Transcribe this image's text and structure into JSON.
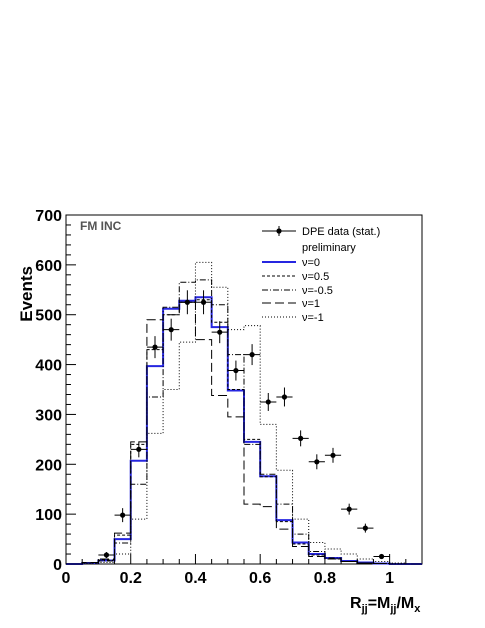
{
  "chart_data": {
    "type": "line",
    "tag": "FM INC",
    "ylabel": "Events",
    "xlabel": {
      "main": "R",
      "sub1": "jj",
      "eq": "=M",
      "sub2": "jj",
      "slash": "/M",
      "sub3": "x"
    },
    "xlim": [
      0,
      1.1
    ],
    "ylim": [
      0,
      700
    ],
    "x_ticks": [
      0,
      0.2,
      0.4,
      0.6,
      0.8,
      1
    ],
    "x_tick_labels": [
      "0",
      "0.2",
      "0.4",
      "0.6",
      "0.8",
      "1"
    ],
    "y_ticks": [
      0,
      100,
      200,
      300,
      400,
      500,
      600,
      700
    ],
    "y_tick_labels": [
      "0",
      "100",
      "200",
      "300",
      "400",
      "500",
      "600",
      "700"
    ],
    "bin_edges": [
      0,
      0.05,
      0.1,
      0.15,
      0.2,
      0.25,
      0.3,
      0.35,
      0.4,
      0.45,
      0.5,
      0.55,
      0.6,
      0.65,
      0.7,
      0.75,
      0.8,
      0.85,
      0.9,
      0.95,
      1.0,
      1.05,
      1.1
    ],
    "data_points": {
      "name": "DPE data (stat.)",
      "x": [
        0.125,
        0.175,
        0.225,
        0.275,
        0.325,
        0.375,
        0.425,
        0.475,
        0.525,
        0.575,
        0.625,
        0.675,
        0.725,
        0.775,
        0.825,
        0.875,
        0.925,
        0.975
      ],
      "y": [
        18,
        98,
        230,
        435,
        470,
        525,
        525,
        465,
        388,
        420,
        325,
        335,
        252,
        205,
        218,
        110,
        72,
        15
      ],
      "yerr": [
        6,
        14,
        16,
        22,
        22,
        24,
        24,
        22,
        20,
        21,
        18,
        19,
        16,
        15,
        15,
        11,
        9,
        4
      ],
      "xerr": 0.025
    },
    "series": [
      {
        "name": "ν=0",
        "color": "#2626e0",
        "style": "solid",
        "values": [
          0,
          2,
          7,
          50,
          207,
          397,
          512,
          528,
          535,
          475,
          348,
          245,
          176,
          88,
          43,
          20,
          12,
          6,
          3,
          1,
          0,
          0
        ]
      },
      {
        "name": "ν=0.5",
        "color": "#000000",
        "style": "dash-fine",
        "values": [
          0,
          2,
          8,
          58,
          240,
          430,
          500,
          525,
          530,
          485,
          350,
          250,
          175,
          85,
          40,
          18,
          10,
          5,
          2,
          1,
          0,
          0
        ]
      },
      {
        "name": "ν=-0.5",
        "color": "#000000",
        "style": "dashdot",
        "values": [
          0,
          2,
          6,
          42,
          160,
          335,
          515,
          565,
          570,
          520,
          420,
          240,
          180,
          120,
          60,
          25,
          12,
          5,
          2,
          1,
          0,
          0
        ]
      },
      {
        "name": "ν=1",
        "color": "#000000",
        "style": "dash-long",
        "values": [
          0,
          3,
          10,
          62,
          245,
          490,
          500,
          525,
          450,
          338,
          295,
          120,
          115,
          70,
          35,
          15,
          10,
          5,
          2,
          1,
          0,
          0
        ]
      },
      {
        "name": "ν=-1",
        "color": "#000000",
        "style": "dotted",
        "values": [
          0,
          1,
          3,
          20,
          90,
          262,
          350,
          445,
          605,
          555,
          470,
          478,
          280,
          188,
          90,
          43,
          30,
          20,
          10,
          5,
          2,
          0
        ]
      }
    ],
    "legend": {
      "position": "top-right",
      "entries": [
        "DPE data (stat.)",
        "preliminary",
        "ν=0",
        "ν=0.5",
        "ν=-0.5",
        "ν=1",
        "ν=-1"
      ]
    },
    "grid": false
  }
}
